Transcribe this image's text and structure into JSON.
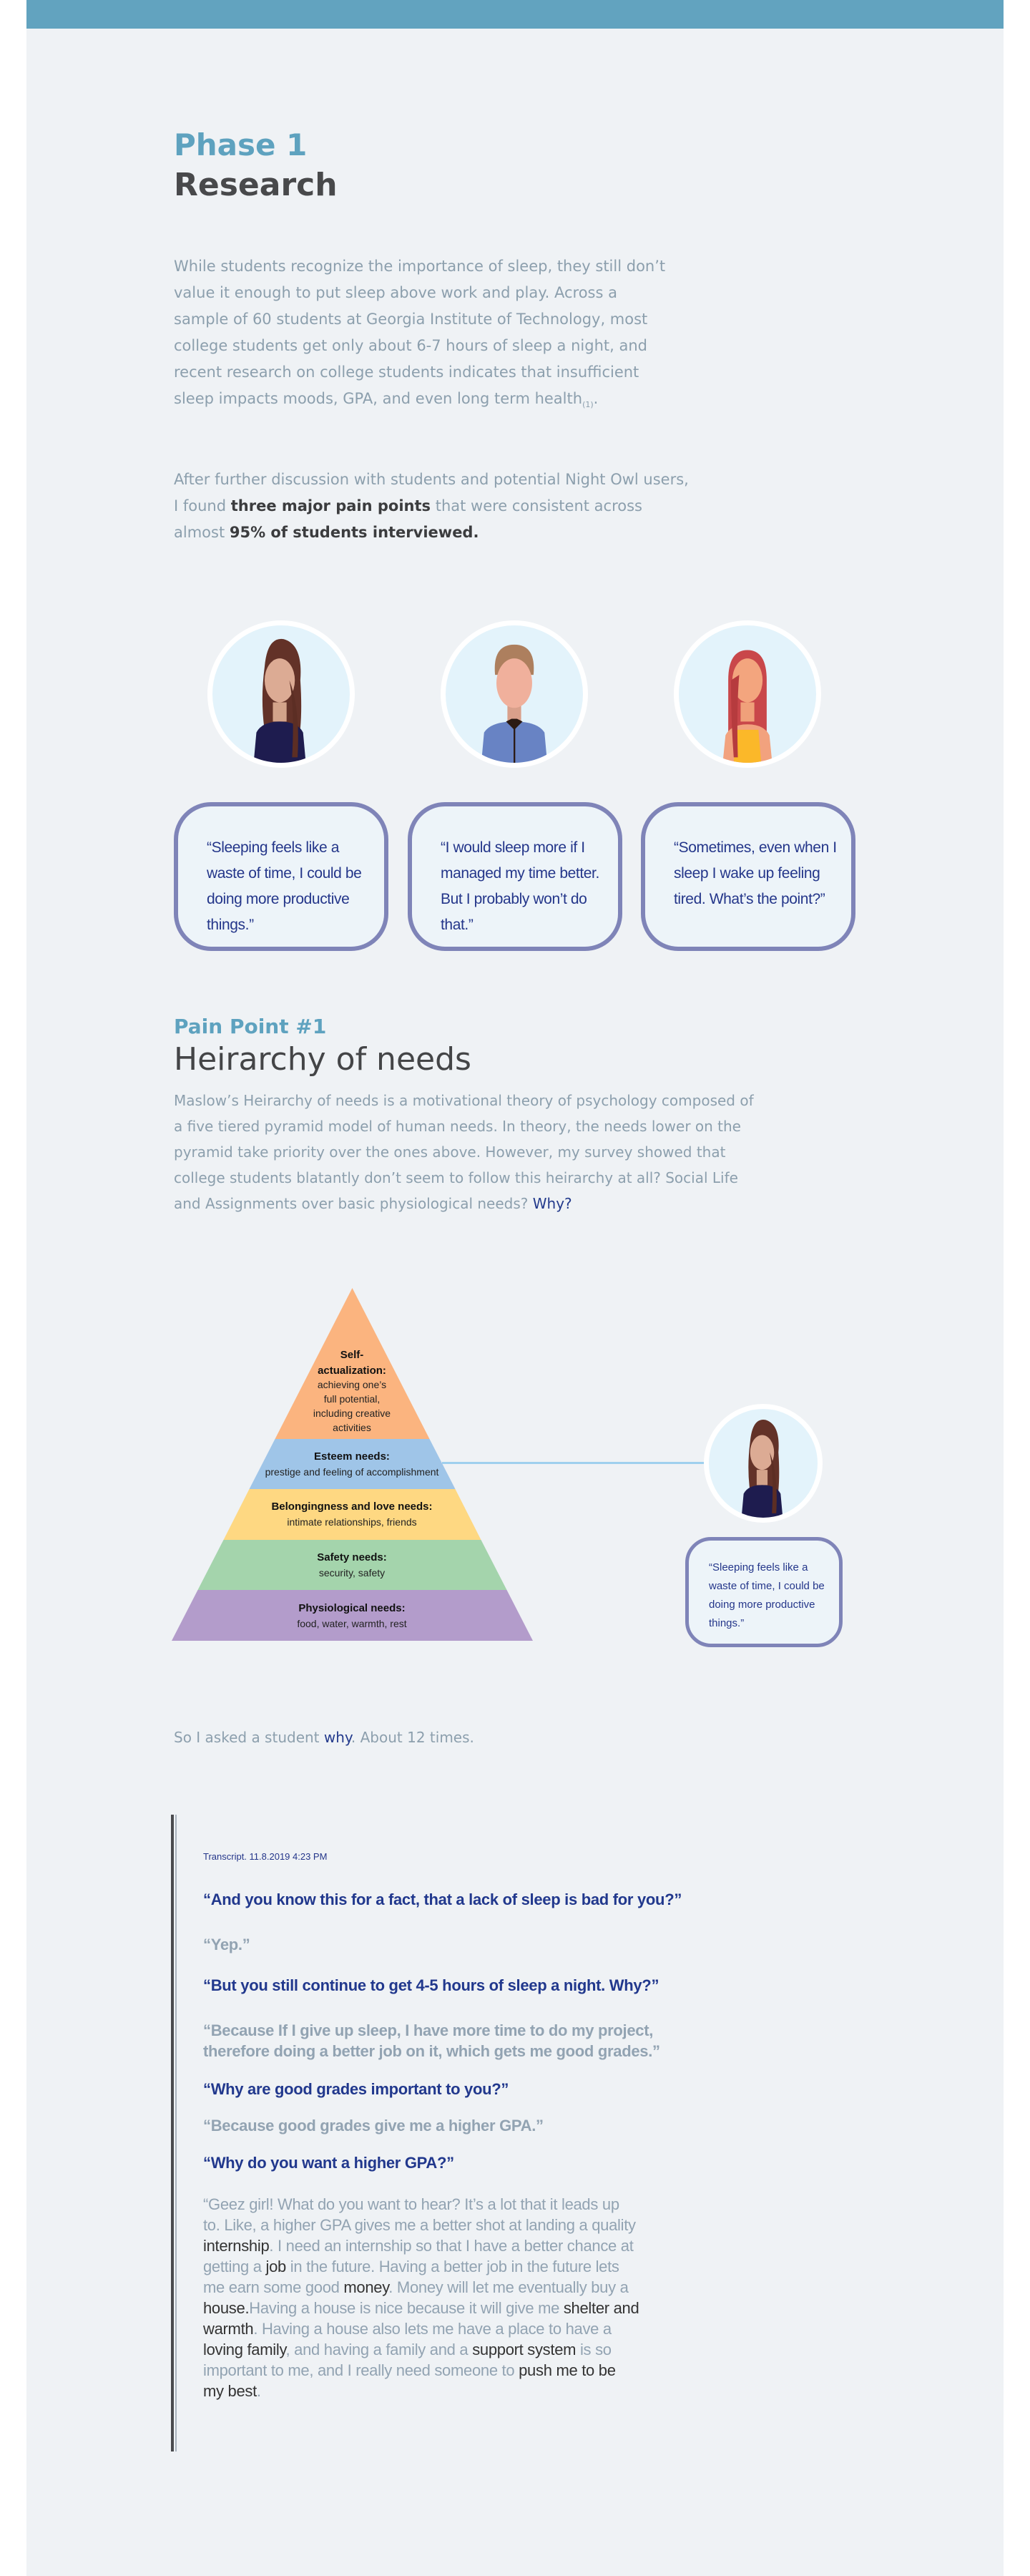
{
  "colors": {
    "accent": "#62a3bf",
    "heading": "#48494b",
    "body": "#8c9fad",
    "link": "#233a8c",
    "quote_border": "#7f84b8"
  },
  "phase": {
    "kicker": "Phase 1",
    "title": "Research"
  },
  "intro": {
    "p1": "While students recognize the importance of sleep, they still don’t value it enough to put sleep above work and play. Across a sample of 60 students at Georgia Institute of Technology, most college students get only about 6-7 hours of sleep a night, and recent research on college students indicates that insufficient sleep impacts moods, GPA, and even long term health",
    "p1_ref": "(1)",
    "p1_end": ".",
    "p2_a": "After further discussion with students and potential Night Owl users, I found ",
    "p2_b": "three major pain points",
    "p2_c": " that were consistent across almost ",
    "p2_d": "95% of students interviewed."
  },
  "personas": [
    {
      "avatar": "female-brown-hair-avatar",
      "quote": "“Sleeping feels like a waste of time, I could be doing more productive things.”"
    },
    {
      "avatar": "male-avatar",
      "quote": "“I would sleep more if I managed my time better. But I probably won’t do that.”"
    },
    {
      "avatar": "female-red-hair-avatar",
      "quote": "“Sometimes, even when I sleep I wake up feeling tired. What’s the point?”"
    }
  ],
  "pain1": {
    "kicker": "Pain Point #1",
    "title": "Heirarchy of needs",
    "body": "Maslow’s Heirarchy of needs is a motivational theory of psychology composed of a five tiered pyramid model of human needs. In theory, the needs lower on the pyramid take priority over the ones above. However, my survey showed that college students blatantly don’t seem to follow this heirarchy at all? Social Life and Assignments over basic physiological needs? ",
    "why": "Why?"
  },
  "pyramid": {
    "tiers": [
      {
        "title1": "Self-",
        "title2": "actualization:",
        "desc": [
          "achieving one’s",
          "full potential,",
          "including creative",
          "activities"
        ],
        "color": "#fbb47f"
      },
      {
        "title": "Esteem needs:",
        "desc": "prestige and feeling of accomplishment",
        "color": "#9fc5e8"
      },
      {
        "title": "Belongingness and love needs:",
        "desc": "intimate relationships, friends",
        "color": "#fed882"
      },
      {
        "title": "Safety needs:",
        "desc": "security, safety",
        "color": "#a4d4ac"
      },
      {
        "title": "Physiological needs:",
        "desc": "food, water, warmth, rest",
        "color": "#b39ccb"
      }
    ],
    "callout_quote": "“Sleeping feels like a waste of time, I could be doing more productive things.”"
  },
  "asked": {
    "a": "So I asked a student ",
    "why": "why",
    "b": ". About 12 times."
  },
  "transcript": {
    "label": "Transcript. 11.8.2019 4:23 PM",
    "lines": [
      {
        "speaker": "interviewer",
        "text": "“And you know this for a fact, that a lack of sleep is bad for you?”"
      },
      {
        "speaker": "student",
        "text": "“Yep.”"
      },
      {
        "speaker": "interviewer",
        "text": "“But you still continue to get 4-5 hours of sleep a night. Why?”"
      },
      {
        "speaker": "student",
        "text": "“Because If I give up sleep, I have more time to do my project, therefore doing a better job on it, which gets me good grades.”"
      },
      {
        "speaker": "interviewer",
        "text": "“Why are good grades important to you?”"
      },
      {
        "speaker": "student",
        "text": "“Because good grades give me a higher GPA.”"
      },
      {
        "speaker": "interviewer",
        "text": "“Why do you want a higher GPA?”"
      }
    ],
    "final_answer": [
      {
        "t": "“Geez girl! What do you want to hear? It’s a lot that it leads up to. Like, a higher GPA gives me a better shot at landing a quality ",
        "em": false
      },
      {
        "t": "internship",
        "em": true
      },
      {
        "t": ". I need an internship so that I have a better chance at getting a ",
        "em": false
      },
      {
        "t": "job",
        "em": true
      },
      {
        "t": " in the future. Having a better job in the future lets me earn some good ",
        "em": false
      },
      {
        "t": "money",
        "em": true
      },
      {
        "t": ". Money will let me eventually buy a ",
        "em": false
      },
      {
        "t": "house.",
        "em": true
      },
      {
        "t": "Having a house is nice because it will give me ",
        "em": false
      },
      {
        "t": "shelter and warmth",
        "em": true
      },
      {
        "t": ". Having a house also lets me have a place to have a ",
        "em": false
      },
      {
        "t": "loving family",
        "em": true
      },
      {
        "t": ", and having a family and a ",
        "em": false
      },
      {
        "t": "support system",
        "em": true
      },
      {
        "t": " is so important to me, and I really need someone to ",
        "em": false
      },
      {
        "t": "push me to be my best",
        "em": true
      },
      {
        "t": ".",
        "em": false
      }
    ]
  }
}
